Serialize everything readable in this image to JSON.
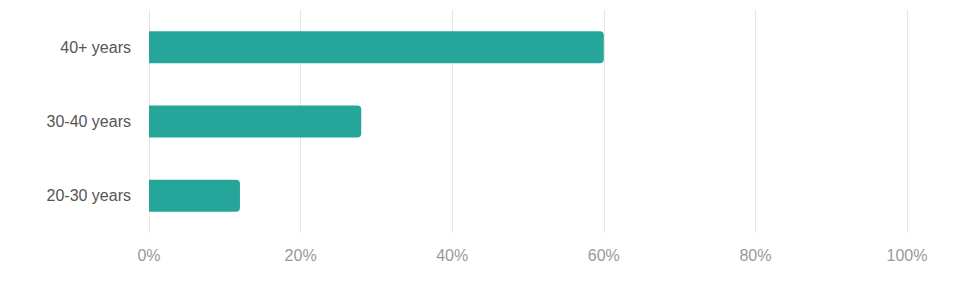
{
  "chart_data": {
    "type": "bar",
    "orientation": "horizontal",
    "categories": [
      "40+ years",
      "30-40 years",
      "20-30 years"
    ],
    "values": [
      60,
      28,
      12
    ],
    "color": "#26a69a",
    "xlim": [
      0,
      100
    ],
    "xticks": [
      {
        "value": 0,
        "label": "0%"
      },
      {
        "value": 20,
        "label": "20%"
      },
      {
        "value": 40,
        "label": "40%"
      },
      {
        "value": 60,
        "label": "60%"
      },
      {
        "value": 80,
        "label": "80%"
      },
      {
        "value": 100,
        "label": "100%"
      }
    ],
    "grid": true
  }
}
